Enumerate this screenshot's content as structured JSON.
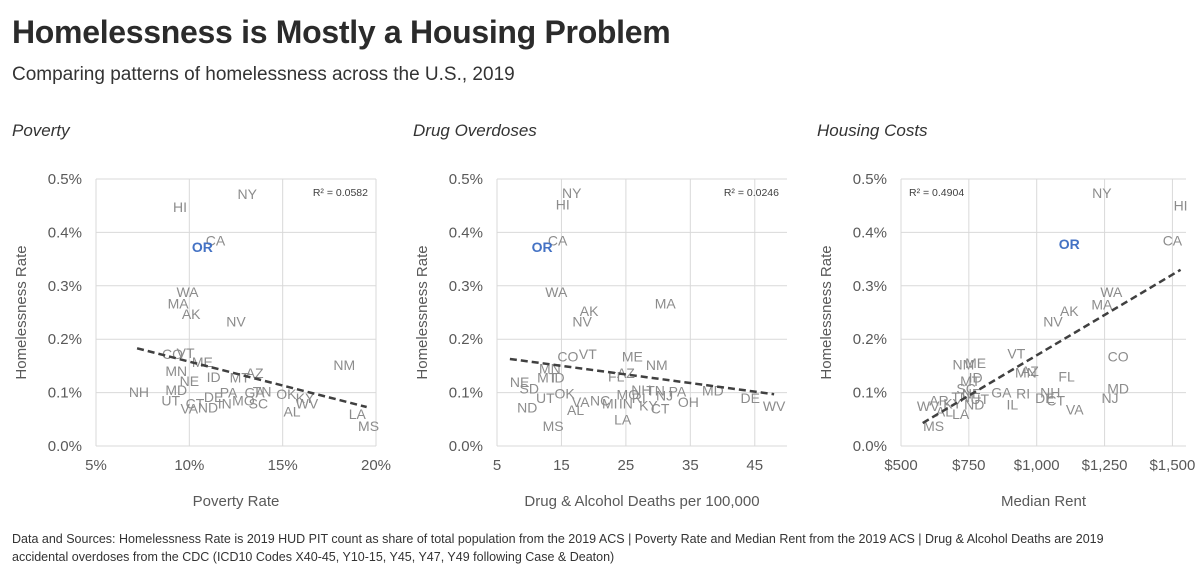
{
  "header": {
    "title": "Homelessness is Mostly a Housing Problem",
    "subtitle": "Comparing patterns of homelessness  across the U.S., 2019"
  },
  "footer": {
    "text_line1": "Data and Sources: Homelessness Rate is 2019 HUD PIT count as share of total population from the 2019 ACS | Poverty Rate and Median Rent from the 2019 ACS | Drug & Alcohol Deaths are 2019",
    "text_line2": "accidental overdoses from the CDC (ICD10 Codes X40-45, Y10-15, Y45, Y47, Y49 following Case & Deaton)"
  },
  "colors": {
    "label": "#8c8c8c",
    "highlight": "#4472c4",
    "grid": "#d9d9d9",
    "trend": "#404040"
  },
  "chart_data": [
    {
      "type": "scatter",
      "title": "Poverty",
      "xlabel": "Poverty Rate",
      "ylabel": "Homelessness Rate",
      "xlim": [
        0.05,
        0.2
      ],
      "ylim": [
        0,
        0.005
      ],
      "xticks": [
        0.05,
        0.1,
        0.15,
        0.2
      ],
      "xtick_labels": [
        "5%",
        "10%",
        "15%",
        "20%"
      ],
      "yticks": [
        0,
        0.001,
        0.002,
        0.003,
        0.004,
        0.005
      ],
      "ytick_labels": [
        "0.0%",
        "0.1%",
        "0.2%",
        "0.3%",
        "0.4%",
        "0.5%"
      ],
      "r2_label": "R² = 0.0582",
      "r2_position": "top-right",
      "trend": [
        [
          0.072,
          0.00183
        ],
        [
          0.195,
          0.00073
        ]
      ],
      "points": [
        {
          "label": "NY",
          "x": 0.131,
          "y": 0.00472
        },
        {
          "label": "HI",
          "x": 0.095,
          "y": 0.00448
        },
        {
          "label": "CA",
          "x": 0.114,
          "y": 0.00385
        },
        {
          "label": "OR",
          "x": 0.107,
          "y": 0.00373,
          "highlight": true
        },
        {
          "label": "WA",
          "x": 0.099,
          "y": 0.00288
        },
        {
          "label": "MA",
          "x": 0.094,
          "y": 0.00267
        },
        {
          "label": "AK",
          "x": 0.101,
          "y": 0.00247
        },
        {
          "label": "NV",
          "x": 0.125,
          "y": 0.00233
        },
        {
          "label": "NM",
          "x": 0.183,
          "y": 0.00152
        },
        {
          "label": "CO",
          "x": 0.091,
          "y": 0.00172
        },
        {
          "label": "VT",
          "x": 0.098,
          "y": 0.00174
        },
        {
          "label": "ME",
          "x": 0.107,
          "y": 0.00157
        },
        {
          "label": "MN",
          "x": 0.093,
          "y": 0.0014
        },
        {
          "label": "AZ",
          "x": 0.135,
          "y": 0.00137
        },
        {
          "label": "ID",
          "x": 0.113,
          "y": 0.00129
        },
        {
          "label": "MT",
          "x": 0.127,
          "y": 0.00128
        },
        {
          "label": "NE",
          "x": 0.1,
          "y": 0.00122
        },
        {
          "label": "MD",
          "x": 0.093,
          "y": 0.00105
        },
        {
          "label": "NH",
          "x": 0.073,
          "y": 0.00101
        },
        {
          "label": "UT",
          "x": 0.09,
          "y": 0.00085
        },
        {
          "label": "DE",
          "x": 0.113,
          "y": 0.00092
        },
        {
          "label": "PA",
          "x": 0.121,
          "y": 0.001
        },
        {
          "label": "GA",
          "x": 0.135,
          "y": 0.001
        },
        {
          "label": "TN",
          "x": 0.139,
          "y": 0.00102
        },
        {
          "label": "OK",
          "x": 0.152,
          "y": 0.00097
        },
        {
          "label": "KY",
          "x": 0.162,
          "y": 0.0009
        },
        {
          "label": "WV",
          "x": 0.163,
          "y": 0.0008
        },
        {
          "label": "AL",
          "x": 0.155,
          "y": 0.00065
        },
        {
          "label": "SC",
          "x": 0.137,
          "y": 0.0008
        },
        {
          "label": "MO",
          "x": 0.129,
          "y": 0.00085
        },
        {
          "label": "IN",
          "x": 0.119,
          "y": 0.0008
        },
        {
          "label": "VA",
          "x": 0.1,
          "y": 0.0007
        },
        {
          "label": "ND",
          "x": 0.11,
          "y": 0.00072
        },
        {
          "label": "CT",
          "x": 0.103,
          "y": 0.0008
        },
        {
          "label": "LA",
          "x": 0.19,
          "y": 0.0006
        },
        {
          "label": "MS",
          "x": 0.196,
          "y": 0.00037
        }
      ]
    },
    {
      "type": "scatter",
      "title": "Drug Overdoses",
      "xlabel": "Drug & Alcohol Deaths per 100,000",
      "ylabel": "Homelessness Rate",
      "xlim": [
        5,
        50
      ],
      "ylim": [
        0,
        0.005
      ],
      "xticks": [
        5,
        15,
        25,
        35,
        45
      ],
      "xtick_labels": [
        "5",
        "15",
        "25",
        "35",
        "45"
      ],
      "yticks": [
        0,
        0.001,
        0.002,
        0.003,
        0.004,
        0.005
      ],
      "ytick_labels": [
        "0.0%",
        "0.1%",
        "0.2%",
        "0.3%",
        "0.4%",
        "0.5%"
      ],
      "r2_label": "R² = 0.0246",
      "r2_position": "top-right",
      "trend": [
        [
          7,
          0.00163
        ],
        [
          48,
          0.00097
        ]
      ],
      "points": [
        {
          "label": "NY",
          "x": 16.6,
          "y": 0.00474
        },
        {
          "label": "HI",
          "x": 15.2,
          "y": 0.00452
        },
        {
          "label": "CA",
          "x": 14.4,
          "y": 0.00385
        },
        {
          "label": "OR",
          "x": 12.0,
          "y": 0.00373,
          "highlight": true
        },
        {
          "label": "WA",
          "x": 14.2,
          "y": 0.00288
        },
        {
          "label": "MA",
          "x": 31.1,
          "y": 0.00267
        },
        {
          "label": "AK",
          "x": 19.3,
          "y": 0.00253
        },
        {
          "label": "NV",
          "x": 18.2,
          "y": 0.00233
        },
        {
          "label": "VT",
          "x": 19.1,
          "y": 0.00172
        },
        {
          "label": "CO",
          "x": 16.0,
          "y": 0.00168
        },
        {
          "label": "ME",
          "x": 26.0,
          "y": 0.00168
        },
        {
          "label": "NM",
          "x": 29.8,
          "y": 0.00152
        },
        {
          "label": "MN",
          "x": 13.2,
          "y": 0.00145
        },
        {
          "label": "MT",
          "x": 12.8,
          "y": 0.00128
        },
        {
          "label": "ID",
          "x": 14.4,
          "y": 0.00128
        },
        {
          "label": "AZ",
          "x": 25.0,
          "y": 0.00137
        },
        {
          "label": "FL",
          "x": 23.5,
          "y": 0.0013
        },
        {
          "label": "NE",
          "x": 8.5,
          "y": 0.0012
        },
        {
          "label": "SD",
          "x": 10.0,
          "y": 0.00108
        },
        {
          "label": "UT",
          "x": 12.5,
          "y": 0.0009
        },
        {
          "label": "NH",
          "x": 27.4,
          "y": 0.00105
        },
        {
          "label": "TN",
          "x": 29.6,
          "y": 0.00104
        },
        {
          "label": "PA",
          "x": 33.0,
          "y": 0.00102
        },
        {
          "label": "NJ",
          "x": 31.0,
          "y": 0.00095
        },
        {
          "label": "MD",
          "x": 38.5,
          "y": 0.00104
        },
        {
          "label": "DE",
          "x": 44.3,
          "y": 0.0009
        },
        {
          "label": "WV",
          "x": 48.0,
          "y": 0.00075
        },
        {
          "label": "OH",
          "x": 34.7,
          "y": 0.00082
        },
        {
          "label": "KY",
          "x": 28.5,
          "y": 0.00076
        },
        {
          "label": "CT",
          "x": 30.3,
          "y": 0.0007
        },
        {
          "label": "MO",
          "x": 25.3,
          "y": 0.00096
        },
        {
          "label": "RI",
          "x": 27.0,
          "y": 0.0009
        },
        {
          "label": "IN",
          "x": 25.0,
          "y": 0.0008
        },
        {
          "label": "NC",
          "x": 21.0,
          "y": 0.00085
        },
        {
          "label": "MI",
          "x": 22.5,
          "y": 0.0008
        },
        {
          "label": "OK",
          "x": 15.5,
          "y": 0.00098
        },
        {
          "label": "VA",
          "x": 18.0,
          "y": 0.00082
        },
        {
          "label": "AL",
          "x": 17.2,
          "y": 0.00067
        },
        {
          "label": "ND",
          "x": 9.7,
          "y": 0.00072
        },
        {
          "label": "LA",
          "x": 24.5,
          "y": 0.0005
        },
        {
          "label": "MS",
          "x": 13.7,
          "y": 0.00037
        }
      ]
    },
    {
      "type": "scatter",
      "title": "Housing Costs",
      "xlabel": "Median Rent",
      "ylabel": "Homelessness Rate",
      "xlim": [
        500,
        1550
      ],
      "ylim": [
        0,
        0.005
      ],
      "xticks": [
        500,
        750,
        1000,
        1250,
        1500
      ],
      "xtick_labels": [
        "$500",
        "$750",
        "$1,000",
        "$1,250",
        "$1,500"
      ],
      "yticks": [
        0,
        0.001,
        0.002,
        0.003,
        0.004,
        0.005
      ],
      "ytick_labels": [
        "0.0%",
        "0.1%",
        "0.2%",
        "0.3%",
        "0.4%",
        "0.5%"
      ],
      "r2_label": "R² = 0.4904",
      "r2_position": "top-left",
      "trend": [
        [
          580,
          0.00043
        ],
        [
          1530,
          0.0033
        ]
      ],
      "points": [
        {
          "label": "NY",
          "x": 1240,
          "y": 0.00474
        },
        {
          "label": "HI",
          "x": 1530,
          "y": 0.0045
        },
        {
          "label": "CA",
          "x": 1500,
          "y": 0.00385
        },
        {
          "label": "OR",
          "x": 1120,
          "y": 0.00378,
          "highlight": true
        },
        {
          "label": "WA",
          "x": 1275,
          "y": 0.00288
        },
        {
          "label": "MA",
          "x": 1240,
          "y": 0.00265
        },
        {
          "label": "AK",
          "x": 1120,
          "y": 0.00253
        },
        {
          "label": "NV",
          "x": 1060,
          "y": 0.00233
        },
        {
          "label": "CO",
          "x": 1300,
          "y": 0.00168
        },
        {
          "label": "VT",
          "x": 925,
          "y": 0.00173
        },
        {
          "label": "NM",
          "x": 730,
          "y": 0.00153
        },
        {
          "label": "ME",
          "x": 775,
          "y": 0.00155
        },
        {
          "label": "AZ",
          "x": 975,
          "y": 0.0014
        },
        {
          "label": "MN",
          "x": 960,
          "y": 0.00138
        },
        {
          "label": "ID",
          "x": 775,
          "y": 0.00128
        },
        {
          "label": "MT",
          "x": 755,
          "y": 0.00122
        },
        {
          "label": "FL",
          "x": 1110,
          "y": 0.0013
        },
        {
          "label": "MD",
          "x": 1300,
          "y": 0.00108
        },
        {
          "label": "NJ",
          "x": 1270,
          "y": 0.0009
        },
        {
          "label": "VA",
          "x": 1140,
          "y": 0.00068
        },
        {
          "label": "NH",
          "x": 1050,
          "y": 0.001
        },
        {
          "label": "RI",
          "x": 950,
          "y": 0.00098
        },
        {
          "label": "DE",
          "x": 1030,
          "y": 0.0009
        },
        {
          "label": "CT",
          "x": 1070,
          "y": 0.00085
        },
        {
          "label": "IL",
          "x": 910,
          "y": 0.00078
        },
        {
          "label": "GA",
          "x": 870,
          "y": 0.001
        },
        {
          "label": "SC",
          "x": 740,
          "y": 0.00108
        },
        {
          "label": "NE",
          "x": 760,
          "y": 0.00098
        },
        {
          "label": "TN",
          "x": 720,
          "y": 0.00092
        },
        {
          "label": "UT",
          "x": 790,
          "y": 0.00088
        },
        {
          "label": "WV",
          "x": 600,
          "y": 0.00075
        },
        {
          "label": "AR",
          "x": 640,
          "y": 0.00085
        },
        {
          "label": "KY",
          "x": 690,
          "y": 0.0008
        },
        {
          "label": "ND",
          "x": 770,
          "y": 0.00078
        },
        {
          "label": "AL",
          "x": 660,
          "y": 0.00065
        },
        {
          "label": "LA",
          "x": 720,
          "y": 0.0006
        },
        {
          "label": "MS",
          "x": 620,
          "y": 0.00037
        }
      ]
    }
  ]
}
